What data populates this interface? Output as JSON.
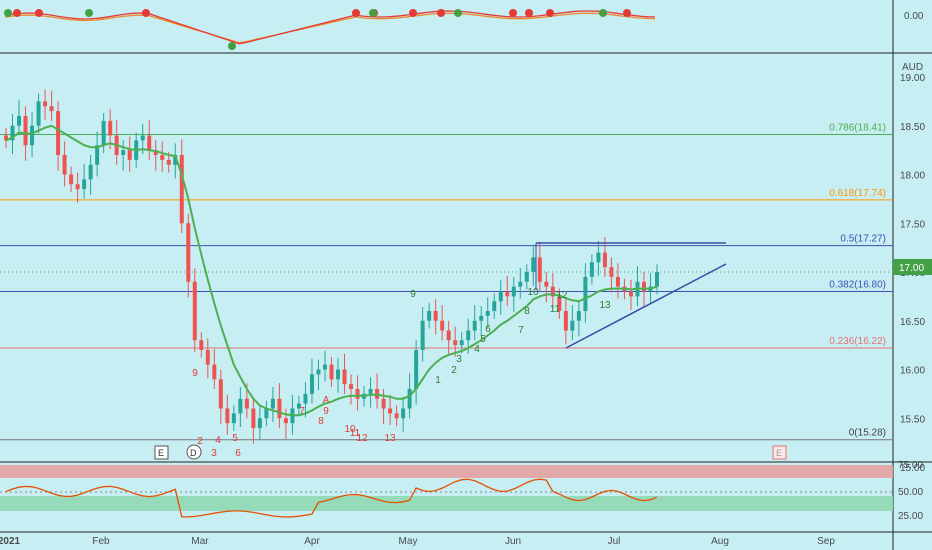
{
  "currency": "AUD",
  "last_price_label": "17.00",
  "chart_data": {
    "type": "candlestick",
    "ylim": [
      15.0,
      19.3
    ],
    "y_ticks": [
      "19.00",
      "18.50",
      "18.00",
      "17.50",
      "17.00",
      "16.50",
      "16.00",
      "15.50",
      "15.00"
    ],
    "x_ticks": [
      "2021",
      "Feb",
      "Mar",
      "Apr",
      "May",
      "Jun",
      "Jul",
      "Aug",
      "Sep"
    ],
    "fib_levels": [
      {
        "label": "0.786(18.41)",
        "value": 18.41,
        "color": "#4caf50"
      },
      {
        "label": "0.618(17.74)",
        "value": 17.74,
        "color": "#ff9800"
      },
      {
        "label": "0.5(17.27)",
        "value": 17.27,
        "color": "#3f51b5"
      },
      {
        "label": "0.382(16.80)",
        "value": 16.8,
        "color": "#3f51b5"
      },
      {
        "label": "0.236(16.22)",
        "value": 16.22,
        "color": "#e57373"
      },
      {
        "label": "0(15.28)",
        "value": 15.28,
        "color": "#777777"
      }
    ],
    "close": [
      18.35,
      18.5,
      18.6,
      18.3,
      18.5,
      18.75,
      18.7,
      18.65,
      18.2,
      18.0,
      17.9,
      17.85,
      17.95,
      18.1,
      18.3,
      18.55,
      18.4,
      18.2,
      18.25,
      18.15,
      18.35,
      18.4,
      18.25,
      18.2,
      18.15,
      18.1,
      18.2,
      17.5,
      16.9,
      16.3,
      16.2,
      16.05,
      15.9,
      15.6,
      15.45,
      15.55,
      15.7,
      15.6,
      15.4,
      15.5,
      15.6,
      15.7,
      15.5,
      15.45,
      15.6,
      15.65,
      15.75,
      15.95,
      16.0,
      16.05,
      15.9,
      16.0,
      15.85,
      15.8,
      15.7,
      15.75,
      15.8,
      15.7,
      15.6,
      15.55,
      15.5,
      15.6,
      15.8,
      16.2,
      16.5,
      16.6,
      16.5,
      16.4,
      16.3,
      16.25,
      16.3,
      16.4,
      16.5,
      16.55,
      16.6,
      16.7,
      16.8,
      16.75,
      16.85,
      16.9,
      17.0,
      17.15,
      16.9,
      16.85,
      16.75,
      16.6,
      16.4,
      16.5,
      16.6,
      16.95,
      17.1,
      17.2,
      17.05,
      16.95,
      16.85,
      16.8,
      16.75,
      16.9,
      16.8,
      16.85,
      17.0
    ],
    "ema": [
      18.35,
      18.38,
      18.43,
      18.42,
      18.42,
      18.45,
      18.48,
      18.5,
      18.46,
      18.42,
      18.38,
      18.34,
      18.3,
      18.28,
      18.28,
      18.3,
      18.32,
      18.3,
      18.28,
      18.26,
      18.25,
      18.26,
      18.25,
      18.24,
      18.22,
      18.2,
      18.19,
      18.0,
      17.75,
      17.45,
      17.18,
      16.92,
      16.68,
      16.45,
      16.25,
      16.05,
      15.92,
      15.8,
      15.7,
      15.63,
      15.6,
      15.58,
      15.56,
      15.54,
      15.53,
      15.53,
      15.55,
      15.58,
      15.62,
      15.65,
      15.67,
      15.7,
      15.72,
      15.73,
      15.73,
      15.73,
      15.74,
      15.74,
      15.73,
      15.72,
      15.7,
      15.7,
      15.73,
      15.8,
      15.9,
      16.0,
      16.07,
      16.12,
      16.15,
      16.17,
      16.19,
      16.22,
      16.26,
      16.3,
      16.35,
      16.4,
      16.46,
      16.5,
      16.55,
      16.6,
      16.65,
      16.72,
      16.75,
      16.77,
      16.77,
      16.76,
      16.73,
      16.71,
      16.7,
      16.73,
      16.76,
      16.8,
      16.82,
      16.83,
      16.83,
      16.83,
      16.82,
      16.83,
      16.83,
      16.83,
      16.85
    ],
    "rsi_range": [
      25,
      75
    ],
    "rsi_ticks": [
      "75.00",
      "50.00",
      "25.00"
    ],
    "oscillator_label": "0.00",
    "sequential_red": [
      "9",
      "2",
      "4",
      "3",
      "5",
      "6",
      "7",
      "8",
      "A",
      "9",
      "10",
      "11",
      "12",
      "13"
    ],
    "sequential_green": [
      "9",
      "8",
      "7",
      "6",
      "5",
      "4",
      "3",
      "2",
      "1",
      "10",
      "11",
      "12",
      "13"
    ],
    "markers": [
      "E",
      "D",
      "E"
    ]
  }
}
